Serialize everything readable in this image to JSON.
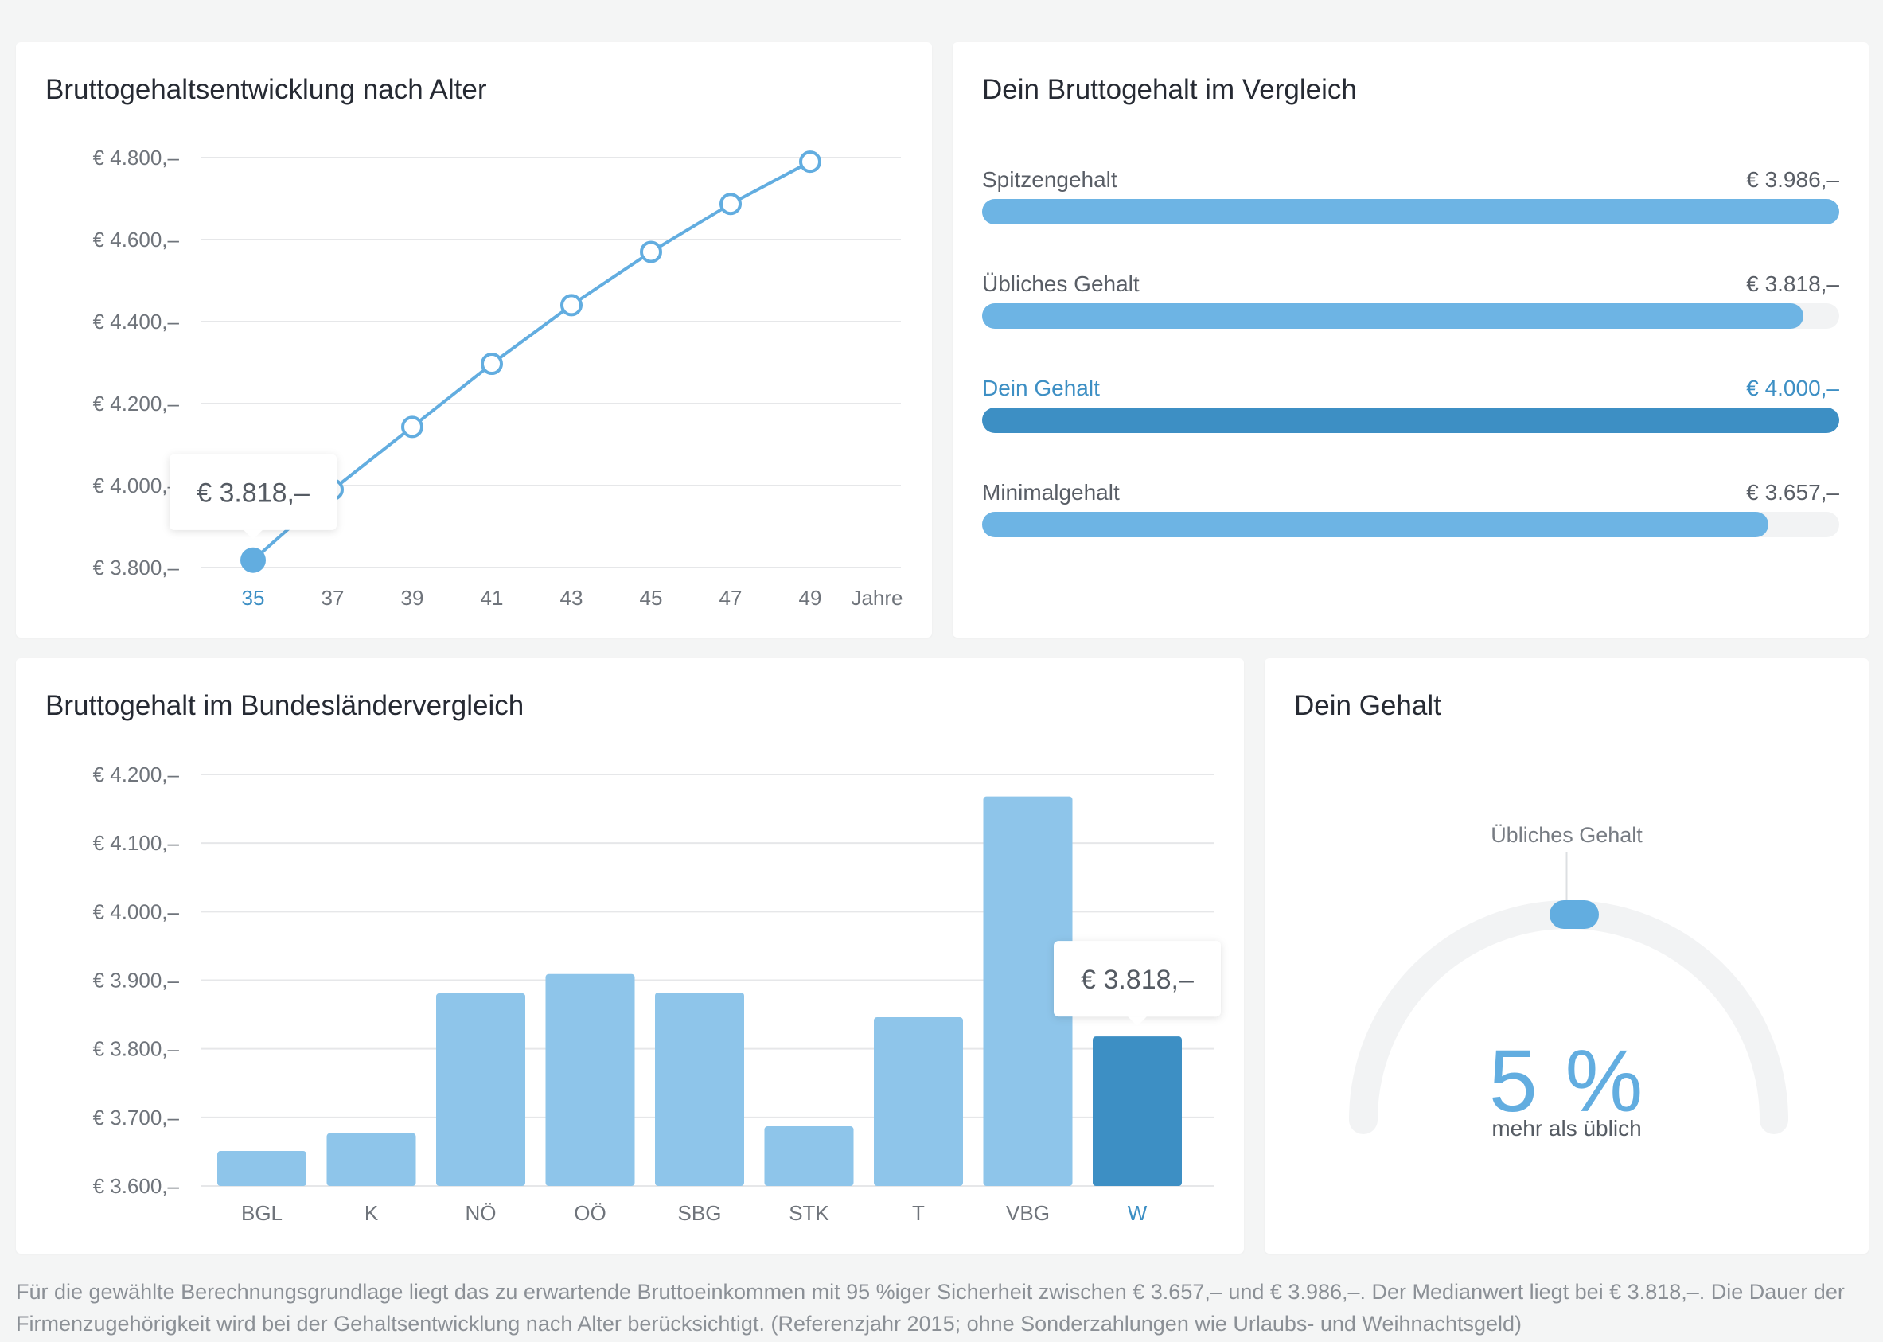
{
  "colors": {
    "accent": "#62ade0",
    "accent_dark": "#3d8fc4",
    "bar": "#8ec5ea",
    "grid": "#e6e7e9",
    "track": "#f2f3f4"
  },
  "age_chart": {
    "title": "Bruttogehaltsentwicklung nach Alter",
    "x_unit": "Jahre",
    "tooltip": "€ 3.818,–",
    "highlight_index": 0
  },
  "compare": {
    "title": "Dein Bruttogehalt im Vergleich",
    "rows": [
      {
        "label": "Spitzengehalt",
        "value": "€ 3.986,–",
        "fraction": 1.0,
        "mine": false
      },
      {
        "label": "Übliches Gehalt",
        "value": "€ 3.818,–",
        "fraction": 0.958,
        "mine": false
      },
      {
        "label": "Dein Gehalt",
        "value": "€ 4.000,–",
        "fraction": 1.0,
        "mine": true
      },
      {
        "label": "Minimalgehalt",
        "value": "€ 3.657,–",
        "fraction": 0.917,
        "mine": false
      }
    ]
  },
  "state_chart": {
    "title": "Bruttogehalt im Bundesländervergleich",
    "tooltip": "€ 3.818,–",
    "highlight_index": 8
  },
  "gauge": {
    "title": "Dein Gehalt",
    "marker_label": "Übliches Gehalt",
    "percent": "5 %",
    "sub": "mehr als üblich"
  },
  "footnote": "Für die gewählte Berechnungsgrundlage liegt das zu erwartende Bruttoeinkommen mit 95 %iger Sicherheit zwischen € 3.657,– und € 3.986,–. Der Medianwert liegt bei € 3.818,–. Die Dauer der Firmenzugehörigkeit wird bei der Gehaltsentwicklung nach Alter berücksichtigt. (Referenzjahr 2015; ohne Sonderzahlungen wie Urlaubs- und Weihnachtsgeld)",
  "chart_data": [
    {
      "type": "line",
      "title": "Bruttogehaltsentwicklung nach Alter",
      "xlabel": "Jahre",
      "ylabel": "",
      "x": [
        35,
        37,
        39,
        41,
        43,
        45,
        47,
        49
      ],
      "x_ticks": [
        "35",
        "37",
        "39",
        "41",
        "43",
        "45",
        "47",
        "49"
      ],
      "values": [
        3818,
        3990,
        4143,
        4297,
        4440,
        4570,
        4687,
        4790
      ],
      "ylim": [
        3800,
        4800
      ],
      "y_ticks": [
        3800,
        4000,
        4200,
        4400,
        4600,
        4800
      ],
      "y_tick_labels": [
        "€ 3.800,–",
        "€ 4.000,–",
        "€ 4.200,–",
        "€ 4.400,–",
        "€ 4.600,–",
        "€ 4.800,–"
      ],
      "grid": true
    },
    {
      "type": "bar",
      "title": "Dein Bruttogehalt im Vergleich",
      "categories": [
        "Spitzengehalt",
        "Übliches Gehalt",
        "Dein Gehalt",
        "Minimalgehalt"
      ],
      "values": [
        3986,
        3818,
        4000,
        3657
      ]
    },
    {
      "type": "bar",
      "title": "Bruttogehalt im Bundesländervergleich",
      "categories": [
        "BGL",
        "K",
        "NÖ",
        "OÖ",
        "SBG",
        "STK",
        "T",
        "VBG",
        "W"
      ],
      "values": [
        3651,
        3677,
        3881,
        3909,
        3882,
        3687,
        3846,
        4168,
        3818
      ],
      "ylim": [
        3600,
        4200
      ],
      "y_ticks": [
        3600,
        3700,
        3800,
        3900,
        4000,
        4100,
        4200
      ],
      "y_tick_labels": [
        "€ 3.600,–",
        "€ 3.700,–",
        "€ 3.800,–",
        "€ 3.900,–",
        "€ 4.000,–",
        "€ 4.100,–",
        "€ 4.200,–"
      ],
      "grid": true
    }
  ]
}
